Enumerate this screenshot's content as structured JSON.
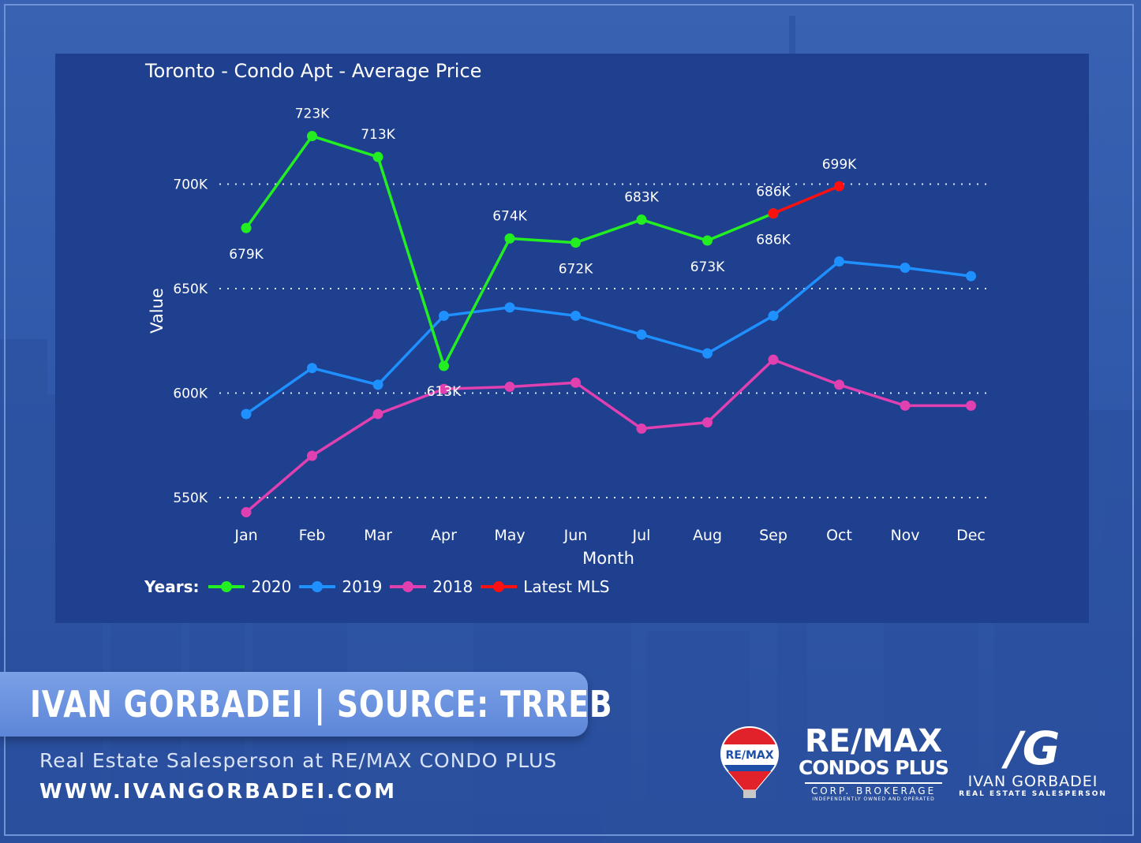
{
  "chart_data": {
    "type": "line",
    "title": "Toronto - Condo Apt - Average Price",
    "xlabel": "Month",
    "ylabel": "Value",
    "categories": [
      "Jan",
      "Feb",
      "Mar",
      "Apr",
      "May",
      "Jun",
      "Jul",
      "Aug",
      "Sep",
      "Oct",
      "Nov",
      "Dec"
    ],
    "ylim": [
      540000,
      735000
    ],
    "yticks": [
      550000,
      600000,
      650000,
      700000
    ],
    "ytick_labels": [
      "550K",
      "600K",
      "650K",
      "700K"
    ],
    "grid": "horizontal dotted",
    "legend_title": "Years:",
    "legend_position": "bottom-left",
    "series": [
      {
        "name": "2020",
        "color": "#22ee22",
        "values": [
          679000,
          723000,
          713000,
          613000,
          674000,
          672000,
          683000,
          673000,
          686000,
          null,
          null,
          null
        ],
        "labels": [
          "679K",
          "723K",
          "713K",
          "613K",
          "674K",
          "672K",
          "683K",
          "673K",
          "686K",
          null,
          null,
          null
        ]
      },
      {
        "name": "2019",
        "color": "#1e90ff",
        "values": [
          590000,
          612000,
          604000,
          637000,
          641000,
          637000,
          628000,
          619000,
          637000,
          663000,
          660000,
          656000
        ]
      },
      {
        "name": "2018",
        "color": "#e040b0",
        "values": [
          543000,
          570000,
          590000,
          602000,
          603000,
          605000,
          583000,
          586000,
          616000,
          604000,
          594000,
          594000
        ]
      },
      {
        "name": "Latest MLS",
        "color": "#ff1010",
        "values": [
          null,
          null,
          null,
          null,
          null,
          null,
          null,
          null,
          686000,
          699000,
          null,
          null
        ],
        "labels": [
          null,
          null,
          null,
          null,
          null,
          null,
          null,
          null,
          "686K",
          "699K",
          null,
          null
        ]
      }
    ]
  },
  "banner": {
    "text": "IVAN GORBADEI  |  SOURCE: TRREB",
    "subtitle": "Real Estate Salesperson at RE/MAX CONDO PLUS",
    "website": "WWW.IVANGORBADEI.COM"
  },
  "logos": {
    "balloon_text": "RE/MAX",
    "remax_word": "RE/MAX",
    "remax_condos": "CONDOS PLUS",
    "remax_corp": "CORP. BROKERAGE",
    "remax_independent": "INDEPENDENTLY OWNED AND OPERATED",
    "ig_mark": "/G",
    "ig_name": "IVAN GORBADEI",
    "ig_role": "REAL ESTATE SALESPERSON"
  }
}
